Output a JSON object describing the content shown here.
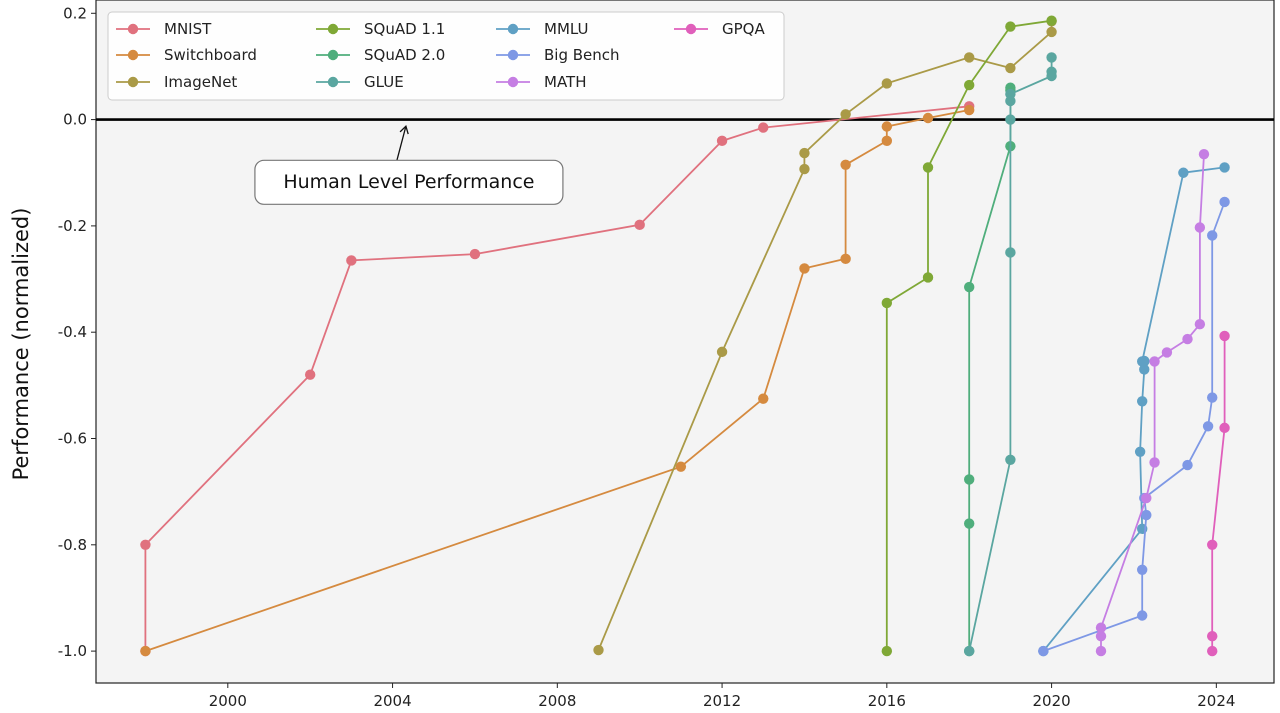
{
  "chart_data": {
    "type": "line",
    "title": "",
    "xlabel": "",
    "ylabel": "Performance (normalized)",
    "xlim": [
      1996.8,
      2025.4
    ],
    "ylim": [
      -1.06,
      0.225
    ],
    "xticks": [
      2000,
      2004,
      2008,
      2012,
      2016,
      2020,
      2024
    ],
    "yticks": [
      0.2,
      0.0,
      -0.2,
      -0.4,
      -0.6,
      -0.8,
      -1.0
    ],
    "ytick_labels": [
      "0.2",
      "0.0",
      "-0.2",
      "-0.4",
      "-0.6",
      "-0.8",
      "-1.0"
    ],
    "grid": false,
    "legend_position": "top-left",
    "reference_line": {
      "y": 0.0,
      "color": "#000000"
    },
    "annotation": {
      "text": "Human Level Performance",
      "arrow_to": [
        2004.3,
        -0.003
      ],
      "text_at": [
        2004.3,
        -0.118
      ]
    },
    "series": [
      {
        "name": "MNIST",
        "color": "#e0717e",
        "x": [
          1998,
          1998,
          2002,
          2003,
          2006,
          2010,
          2012,
          2013,
          2018
        ],
        "y": [
          -1.0,
          -0.8,
          -0.48,
          -0.265,
          -0.253,
          -0.198,
          -0.04,
          -0.015,
          0.025
        ]
      },
      {
        "name": "Switchboard",
        "color": "#d58a3f",
        "x": [
          1998,
          2011,
          2013,
          2014,
          2015,
          2015,
          2016,
          2016,
          2017,
          2018
        ],
        "y": [
          -1.0,
          -0.653,
          -0.525,
          -0.28,
          -0.262,
          -0.085,
          -0.04,
          -0.013,
          0.003,
          0.018
        ]
      },
      {
        "name": "ImageNet",
        "color": "#aa9a47",
        "x": [
          2009,
          2012,
          2014,
          2014,
          2015,
          2016,
          2018,
          2019,
          2020,
          2020
        ],
        "y": [
          -0.998,
          -0.437,
          -0.093,
          -0.063,
          0.01,
          0.068,
          0.117,
          0.097,
          0.165,
          0.185
        ]
      },
      {
        "name": "SQuAD 1.1",
        "color": "#7fa836",
        "x": [
          2016,
          2016,
          2017,
          2017,
          2018,
          2019,
          2020
        ],
        "y": [
          -1.0,
          -0.345,
          -0.297,
          -0.09,
          0.065,
          0.175,
          0.186
        ]
      },
      {
        "name": "SQuAD 2.0",
        "color": "#4fae7c",
        "x": [
          2018,
          2018,
          2018,
          2018,
          2019,
          2019,
          2019
        ],
        "y": [
          -1.0,
          -0.76,
          -0.677,
          -0.315,
          -0.05,
          0.055,
          0.06
        ]
      },
      {
        "name": "GLUE",
        "color": "#5aa6a0",
        "x": [
          2018,
          2019,
          2019,
          2019,
          2019,
          2019,
          2020,
          2020,
          2020
        ],
        "y": [
          -1.0,
          -0.64,
          -0.25,
          0.0,
          0.035,
          0.048,
          0.082,
          0.09,
          0.117
        ]
      },
      {
        "name": "MMLU",
        "color": "#5fa0c4",
        "x": [
          2019.8,
          2022.2,
          2022.15,
          2022.2,
          2022.25,
          2022.25,
          2022.25,
          2022.2,
          2023.2,
          2024.2
        ],
        "y": [
          -1.0,
          -0.77,
          -0.625,
          -0.53,
          -0.47,
          -0.455,
          -0.454,
          -0.455,
          -0.1,
          -0.09
        ]
      },
      {
        "name": "Big Bench",
        "color": "#7e98e5",
        "x": [
          2019.8,
          2022.2,
          2022.2,
          2022.3,
          2022.25,
          2023.3,
          2023.8,
          2023.9,
          2023.9,
          2024.2
        ],
        "y": [
          -1.0,
          -0.933,
          -0.847,
          -0.744,
          -0.712,
          -0.65,
          -0.577,
          -0.523,
          -0.218,
          -0.155
        ]
      },
      {
        "name": "MATH",
        "color": "#c57ee3",
        "x": [
          2021.2,
          2021.2,
          2021.2,
          2022.3,
          2022.5,
          2022.5,
          2022.8,
          2023.3,
          2023.6,
          2023.6,
          2023.7
        ],
        "y": [
          -1.0,
          -0.972,
          -0.956,
          -0.712,
          -0.645,
          -0.455,
          -0.438,
          -0.413,
          -0.385,
          -0.203,
          -0.065
        ]
      },
      {
        "name": "GPQA",
        "color": "#e05fbb",
        "x": [
          2023.9,
          2023.9,
          2023.9,
          2024.2,
          2024.2
        ],
        "y": [
          -1.0,
          -0.972,
          -0.8,
          -0.58,
          -0.407
        ]
      }
    ]
  }
}
